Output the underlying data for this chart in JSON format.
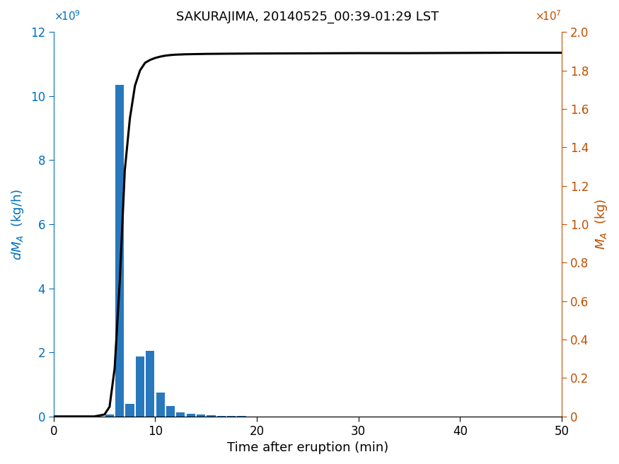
{
  "title": "SAKURAJIMA, 20140525_00:39-01:29 LST",
  "xlabel": "Time after eruption (min)",
  "ylabel_left": "dMₐ (kg/h)",
  "ylabel_right": "Mₐ (kg)",
  "xlim": [
    0,
    50
  ],
  "ylim_left": [
    0,
    12000000000.0
  ],
  "ylim_right": [
    0,
    20000000.0
  ],
  "bar_color": "#2878BE",
  "line_color": "#000000",
  "bar_centers": [
    5.5,
    6.5,
    7.5,
    8.5,
    9.5,
    10.5,
    11.5,
    12.5,
    13.5,
    14.5,
    15.5,
    16.5,
    17.5,
    18.5,
    20.5,
    22.5,
    48.5
  ],
  "bar_heights": [
    50000000.0,
    10350000000.0,
    400000000.0,
    1880000000.0,
    2050000000.0,
    750000000.0,
    320000000.0,
    120000000.0,
    80000000.0,
    50000000.0,
    35000000.0,
    20000000.0,
    15000000.0,
    10000000.0,
    5000000.0,
    3000000.0,
    1000000.0
  ],
  "bar_width": 0.85,
  "cum_x": [
    0,
    1,
    2,
    3,
    4,
    5,
    5.5,
    6,
    6.5,
    7,
    7.5,
    8,
    8.5,
    9,
    9.5,
    10,
    10.5,
    11,
    11.5,
    12,
    13,
    14,
    15,
    17,
    20,
    25,
    30,
    35,
    40,
    45,
    48,
    50
  ],
  "cum_y": [
    0,
    0,
    0,
    0,
    0,
    100000.0,
    500000.0,
    2500000.0,
    7000000.0,
    12800000.0,
    15500000.0,
    17200000.0,
    18000000.0,
    18400000.0,
    18550000.0,
    18650000.0,
    18720000.0,
    18770000.0,
    18800000.0,
    18820000.0,
    18840000.0,
    18850000.0,
    18860000.0,
    18870000.0,
    18880000.0,
    18890000.0,
    18900000.0,
    18900000.0,
    18910000.0,
    18920000.0,
    18920000.0,
    18920000.0
  ],
  "left_tick_color": "#0070C0",
  "right_tick_color": "#C05000",
  "title_fontsize": 13,
  "label_fontsize": 13,
  "tick_fontsize": 12,
  "left_yticks": [
    0,
    2000000000.0,
    4000000000.0,
    6000000000.0,
    8000000000.0,
    10000000000.0,
    12000000000.0
  ],
  "right_yticks": [
    0,
    2000000.0,
    4000000.0,
    6000000.0,
    8000000.0,
    10000000.0,
    12000000.0,
    14000000.0,
    16000000.0,
    18000000.0,
    20000000.0
  ],
  "xticks": [
    0,
    10,
    20,
    30,
    40,
    50
  ]
}
